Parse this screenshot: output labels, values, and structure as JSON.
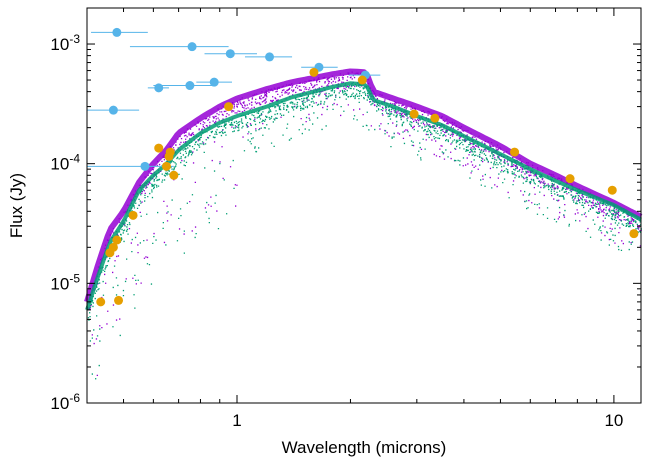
{
  "chart_data": {
    "type": "scatter",
    "title": "",
    "xlabel": "Wavelength (microns)",
    "ylabel": "Flux (Jy)",
    "xscale": "log",
    "yscale": "log",
    "xlim": [
      0.4,
      11.8
    ],
    "ylim": [
      1e-06,
      0.002
    ],
    "grid": false,
    "legend": "none",
    "x_ticks": [
      {
        "value": 1,
        "label": "1"
      },
      {
        "value": 10,
        "label": "10"
      }
    ],
    "y_ticks": [
      {
        "value": 0.001,
        "base": "10",
        "exp": "-3"
      },
      {
        "value": 0.0001,
        "base": "10",
        "exp": "-4"
      },
      {
        "value": 1e-05,
        "base": "10",
        "exp": "-5"
      },
      {
        "value": 1e-06,
        "base": "10",
        "exp": "-6"
      }
    ],
    "colors": {
      "model_spectrum_a": "#9400d3",
      "model_spectrum_b": "#009e73",
      "model_spectrum_c": "#56b4e9",
      "photometry_blue": "#56b4e9",
      "photometry_orange": "#e69f00",
      "errorbar": "#56b4e9"
    },
    "series": [
      {
        "marker": "circle",
        "color": "#56b4e9",
        "points": [
          {
            "x": 0.48,
            "y": 0.00125,
            "xerr": [
              0.41,
              0.58
            ]
          },
          {
            "x": 0.76,
            "y": 0.00095,
            "xerr": [
              0.52,
              0.95
            ]
          },
          {
            "x": 0.96,
            "y": 0.00083,
            "xerr": [
              0.82,
              1.13
            ]
          },
          {
            "x": 1.22,
            "y": 0.00078,
            "xerr": [
              1.05,
              1.4
            ]
          },
          {
            "x": 1.65,
            "y": 0.00064,
            "xerr": [
              1.48,
              1.85
            ]
          },
          {
            "x": 2.19,
            "y": 0.00055,
            "xerr": [
              1.98,
              2.4
            ]
          },
          {
            "x": 0.87,
            "y": 0.00048,
            "xerr": [
              0.78,
              0.97
            ]
          },
          {
            "x": 0.75,
            "y": 0.00045,
            "xerr": [
              0.6,
              0.86
            ]
          },
          {
            "x": 0.62,
            "y": 0.00043,
            "xerr": [
              0.58,
              0.66
            ]
          },
          {
            "x": 0.47,
            "y": 0.00028,
            "xerr": [
              0.4,
              0.55
            ]
          },
          {
            "x": 0.57,
            "y": 9.5e-05,
            "xerr": [
              0.4,
              0.68
            ]
          }
        ]
      },
      {
        "marker": "circle",
        "color": "#e69f00",
        "points": [
          {
            "x": 0.435,
            "y": 7e-06
          },
          {
            "x": 0.46,
            "y": 1.8e-05
          },
          {
            "x": 0.47,
            "y": 2e-05
          },
          {
            "x": 0.48,
            "y": 2.3e-05
          },
          {
            "x": 0.485,
            "y": 7.2e-06
          },
          {
            "x": 0.53,
            "y": 3.7e-05
          },
          {
            "x": 0.62,
            "y": 0.000135
          },
          {
            "x": 0.65,
            "y": 9.5e-05
          },
          {
            "x": 0.66,
            "y": 0.000115
          },
          {
            "x": 0.665,
            "y": 0.000125
          },
          {
            "x": 0.68,
            "y": 8e-05
          },
          {
            "x": 0.95,
            "y": 0.0003
          },
          {
            "x": 1.6,
            "y": 0.00058
          },
          {
            "x": 2.15,
            "y": 0.0005
          },
          {
            "x": 2.95,
            "y": 0.00026
          },
          {
            "x": 3.35,
            "y": 0.00024
          },
          {
            "x": 5.45,
            "y": 0.000125
          },
          {
            "x": 7.65,
            "y": 7.5e-05
          },
          {
            "x": 9.9,
            "y": 6e-05
          },
          {
            "x": 11.3,
            "y": 2.6e-05
          }
        ]
      }
    ],
    "model_spectra": [
      {
        "color": "#9400d3",
        "x": [
          0.4,
          0.43,
          0.46,
          0.5,
          0.55,
          0.6,
          0.65,
          0.7,
          0.8,
          0.9,
          1.0,
          1.2,
          1.4,
          1.6,
          1.8,
          2.0,
          2.2,
          2.3,
          2.6,
          3.0,
          3.5,
          4.0,
          5.0,
          6.0,
          7.0,
          8.0,
          10.0,
          11.8
        ],
        "y": [
          7e-06,
          1.5e-05,
          2.8e-05,
          4e-05,
          7e-05,
          0.0001,
          0.00013,
          0.00018,
          0.00024,
          0.0003,
          0.00035,
          0.00042,
          0.00048,
          0.00052,
          0.00056,
          0.00059,
          0.00058,
          0.0004,
          0.00035,
          0.0003,
          0.00025,
          0.0002,
          0.00014,
          0.0001,
          8e-05,
          6.5e-05,
          4.7e-05,
          3.6e-05
        ]
      },
      {
        "color": "#009e73",
        "x": [
          0.4,
          0.43,
          0.46,
          0.5,
          0.55,
          0.6,
          0.65,
          0.7,
          0.8,
          0.9,
          1.0,
          1.2,
          1.4,
          1.6,
          1.8,
          2.0,
          2.2,
          2.3,
          2.6,
          3.0,
          3.5,
          4.0,
          5.0,
          6.0,
          7.0,
          8.0,
          10.0,
          11.8
        ],
        "y": [
          6e-06,
          1.2e-05,
          2.2e-05,
          3.3e-05,
          6e-05,
          8e-05,
          0.0001,
          0.00013,
          0.00018,
          0.00022,
          0.00025,
          0.0003,
          0.00036,
          0.0004,
          0.00044,
          0.00047,
          0.00046,
          0.00034,
          0.0003,
          0.00025,
          0.00021,
          0.00017,
          0.00012,
          9e-05,
          7.2e-05,
          6e-05,
          4.5e-05,
          3.4e-05
        ]
      }
    ]
  }
}
